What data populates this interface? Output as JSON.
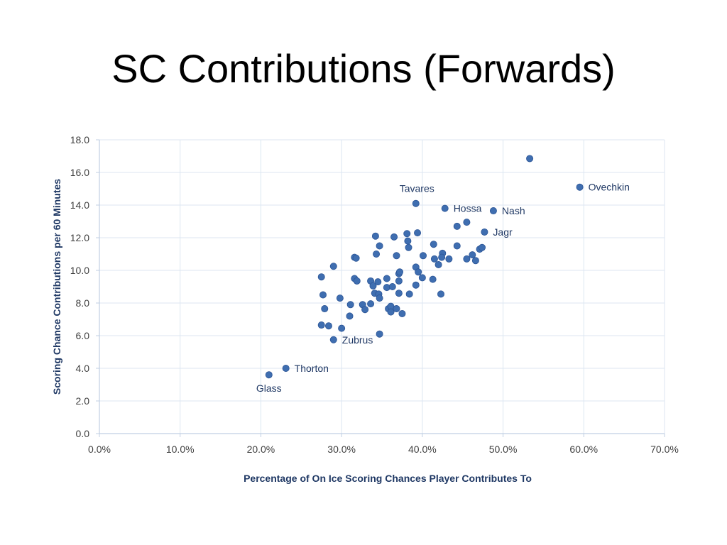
{
  "slide": {
    "title": "SC Contributions (Forwards)"
  },
  "chart_data": {
    "type": "scatter",
    "xlabel": "Percentage of On Ice Scoring Chances Player Contributes To",
    "ylabel": "Scoring Chance Contributions per 60 Minutes",
    "xlim": [
      0,
      0.7
    ],
    "ylim": [
      0,
      18
    ],
    "x_ticks": [
      0,
      0.1,
      0.2,
      0.3,
      0.4,
      0.5,
      0.6,
      0.7
    ],
    "x_tick_labels": [
      "0.0%",
      "10.0%",
      "20.0%",
      "30.0%",
      "40.0%",
      "50.0%",
      "60.0%",
      "70.0%"
    ],
    "y_ticks": [
      0,
      2,
      4,
      6,
      8,
      10,
      12,
      14,
      16,
      18
    ],
    "y_tick_labels": [
      "0.0",
      "2.0",
      "4.0",
      "6.0",
      "8.0",
      "10.0",
      "12.0",
      "14.0",
      "16.0",
      "18.0"
    ],
    "grid": true,
    "legend": "none",
    "marker_color": "#3f6eb0",
    "label_color": "#1f3864",
    "gridline_color": "#dce6f2",
    "axis_color": "#c0cfe3",
    "labeled_points": [
      {
        "name": "Ovechkin",
        "x": 0.595,
        "y": 15.1
      },
      {
        "name": "Tavares",
        "x": 0.392,
        "y": 14.1
      },
      {
        "name": "Hossa",
        "x": 0.428,
        "y": 13.8
      },
      {
        "name": "Nash",
        "x": 0.488,
        "y": 13.65
      },
      {
        "name": "Jagr",
        "x": 0.477,
        "y": 12.35
      },
      {
        "name": "Zubrus",
        "x": 0.29,
        "y": 5.75
      },
      {
        "name": "Thorton",
        "x": 0.231,
        "y": 4.0
      },
      {
        "name": "Glass",
        "x": 0.21,
        "y": 3.6
      }
    ],
    "points": [
      {
        "x": 0.533,
        "y": 16.85
      },
      {
        "x": 0.455,
        "y": 12.95
      },
      {
        "x": 0.443,
        "y": 12.7
      },
      {
        "x": 0.342,
        "y": 12.1
      },
      {
        "x": 0.365,
        "y": 12.05
      },
      {
        "x": 0.381,
        "y": 12.25
      },
      {
        "x": 0.394,
        "y": 12.3
      },
      {
        "x": 0.382,
        "y": 11.8
      },
      {
        "x": 0.383,
        "y": 11.4
      },
      {
        "x": 0.347,
        "y": 11.5
      },
      {
        "x": 0.414,
        "y": 11.6
      },
      {
        "x": 0.443,
        "y": 11.5
      },
      {
        "x": 0.471,
        "y": 11.3
      },
      {
        "x": 0.474,
        "y": 11.4
      },
      {
        "x": 0.425,
        "y": 11.05
      },
      {
        "x": 0.424,
        "y": 10.8
      },
      {
        "x": 0.415,
        "y": 10.7
      },
      {
        "x": 0.433,
        "y": 10.7
      },
      {
        "x": 0.401,
        "y": 10.9
      },
      {
        "x": 0.368,
        "y": 10.9
      },
      {
        "x": 0.343,
        "y": 11.0
      },
      {
        "x": 0.316,
        "y": 10.8
      },
      {
        "x": 0.318,
        "y": 10.75
      },
      {
        "x": 0.455,
        "y": 10.7
      },
      {
        "x": 0.462,
        "y": 10.95
      },
      {
        "x": 0.466,
        "y": 10.6
      },
      {
        "x": 0.42,
        "y": 10.35
      },
      {
        "x": 0.392,
        "y": 10.2
      },
      {
        "x": 0.29,
        "y": 10.25
      },
      {
        "x": 0.395,
        "y": 9.9
      },
      {
        "x": 0.371,
        "y": 9.8
      },
      {
        "x": 0.372,
        "y": 9.9
      },
      {
        "x": 0.275,
        "y": 9.6
      },
      {
        "x": 0.316,
        "y": 9.5
      },
      {
        "x": 0.319,
        "y": 9.35
      },
      {
        "x": 0.336,
        "y": 9.35
      },
      {
        "x": 0.345,
        "y": 9.3
      },
      {
        "x": 0.356,
        "y": 9.5
      },
      {
        "x": 0.4,
        "y": 9.55
      },
      {
        "x": 0.413,
        "y": 9.45
      },
      {
        "x": 0.371,
        "y": 9.35
      },
      {
        "x": 0.339,
        "y": 9.05
      },
      {
        "x": 0.356,
        "y": 8.95
      },
      {
        "x": 0.363,
        "y": 9.0
      },
      {
        "x": 0.392,
        "y": 9.1
      },
      {
        "x": 0.277,
        "y": 8.5
      },
      {
        "x": 0.298,
        "y": 8.3
      },
      {
        "x": 0.341,
        "y": 8.6
      },
      {
        "x": 0.346,
        "y": 8.55
      },
      {
        "x": 0.347,
        "y": 8.3
      },
      {
        "x": 0.371,
        "y": 8.6
      },
      {
        "x": 0.384,
        "y": 8.55
      },
      {
        "x": 0.423,
        "y": 8.55
      },
      {
        "x": 0.279,
        "y": 7.65
      },
      {
        "x": 0.311,
        "y": 7.9
      },
      {
        "x": 0.326,
        "y": 7.9
      },
      {
        "x": 0.336,
        "y": 7.95
      },
      {
        "x": 0.329,
        "y": 7.6
      },
      {
        "x": 0.358,
        "y": 7.65
      },
      {
        "x": 0.361,
        "y": 7.8
      },
      {
        "x": 0.368,
        "y": 7.65
      },
      {
        "x": 0.361,
        "y": 7.45
      },
      {
        "x": 0.375,
        "y": 7.35
      },
      {
        "x": 0.31,
        "y": 7.2
      },
      {
        "x": 0.275,
        "y": 6.65
      },
      {
        "x": 0.284,
        "y": 6.6
      },
      {
        "x": 0.3,
        "y": 6.45
      },
      {
        "x": 0.347,
        "y": 6.1
      }
    ]
  }
}
